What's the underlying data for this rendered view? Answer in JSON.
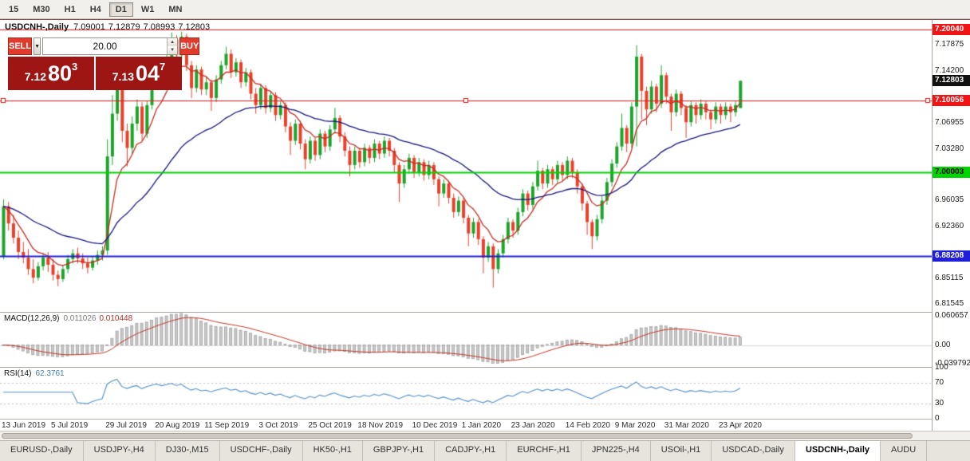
{
  "toolbar": {
    "timeframes": [
      {
        "label": "15",
        "active": false
      },
      {
        "label": "M30",
        "active": false
      },
      {
        "label": "H1",
        "active": false
      },
      {
        "label": "H4",
        "active": false
      },
      {
        "label": "D1",
        "active": true
      },
      {
        "label": "W1",
        "active": false
      },
      {
        "label": "MN",
        "active": false
      }
    ]
  },
  "info_line": {
    "symbol": "USDCNH-,Daily",
    "open": "7.09001",
    "high": "7.12879",
    "low": "7.08993",
    "close": "7.12803"
  },
  "trade_panel": {
    "sell_label": "SELL",
    "buy_label": "BUY",
    "volume": "20.00",
    "sell_price": {
      "base": "7.12",
      "pips": "80",
      "point": "3"
    },
    "buy_price": {
      "base": "7.13",
      "pips": "04",
      "point": "7"
    }
  },
  "indicators": {
    "macd": {
      "title": "MACD(12,26,9)",
      "value_main": "0.011026",
      "value_signal": "0.010448",
      "axis_labels": [
        "0.060657",
        "0.00",
        "-0.039792"
      ]
    },
    "rsi": {
      "title": "RSI(14)",
      "value": "62.3761",
      "axis_labels": [
        "100",
        "70",
        "30",
        "0"
      ],
      "levels": [
        70,
        30
      ]
    }
  },
  "price_axis": {
    "ticks": [
      "7.17875",
      "7.14200",
      "7.06955",
      "7.03280",
      "6.96035",
      "6.92360",
      "6.85115",
      "6.81545"
    ]
  },
  "tab_bar": {
    "tabs": [
      {
        "label": "EURUSD-,Daily",
        "active": false
      },
      {
        "label": "USDJPY-,H4",
        "active": false
      },
      {
        "label": "DJ30-,M15",
        "active": false
      },
      {
        "label": "USDCHF-,Daily",
        "active": false
      },
      {
        "label": "HK50-,H1",
        "active": false
      },
      {
        "label": "GBPJPY-,H1",
        "active": false
      },
      {
        "label": "CADJPY-,H1",
        "active": false
      },
      {
        "label": "EURCHF-,H1",
        "active": false
      },
      {
        "label": "JPN225-,H4",
        "active": false
      },
      {
        "label": "USOil-,H1",
        "active": false
      },
      {
        "label": "USDCAD-,Daily",
        "active": false
      },
      {
        "label": "USDCNH-,Daily",
        "active": true
      },
      {
        "label": "AUDU",
        "active": false
      }
    ]
  },
  "colors": {
    "up": "#1ca42c",
    "down": "#e9402b",
    "ma_fast": "#c92a21",
    "ma_slow": "#14147e",
    "line_red": "#f01414",
    "line_green": "#00d400",
    "line_blue": "#1f1fd9",
    "macd_hist": "#c9c9c9",
    "macd_hist_border": "#9a9a9a",
    "macd_signal": "#c03328",
    "rsi_line": "#4f8ec9",
    "tag_current_bg": "#111111",
    "button_red": "#e23a2b",
    "price_box_red": "#9e1613"
  },
  "chart_data": {
    "type": "candlestick",
    "symbol": "USDCNH-",
    "timeframe": "Daily",
    "current_bar": {
      "open": 7.09001,
      "high": 7.12879,
      "low": 7.08993,
      "close": 7.12803
    },
    "y_range": [
      6.804,
      7.2135
    ],
    "macd_range": [
      -0.046,
      0.068
    ],
    "x_labels": [
      {
        "t": "13 Jun 2019",
        "i": 0
      },
      {
        "t": "5 Jul 2019",
        "i": 10
      },
      {
        "t": "29 Jul 2019",
        "i": 21
      },
      {
        "t": "20 Aug 2019",
        "i": 31
      },
      {
        "t": "11 Sep 2019",
        "i": 41
      },
      {
        "t": "3 Oct 2019",
        "i": 52
      },
      {
        "t": "25 Oct 2019",
        "i": 62
      },
      {
        "t": "18 Nov 2019",
        "i": 72
      },
      {
        "t": "10 Dec 2019",
        "i": 83
      },
      {
        "t": "1 Jan 2020",
        "i": 93
      },
      {
        "t": "23 Jan 2020",
        "i": 103
      },
      {
        "t": "14 Feb 2020",
        "i": 114
      },
      {
        "t": "9 Mar 2020",
        "i": 124
      },
      {
        "t": "31 Mar 2020",
        "i": 134
      },
      {
        "t": "23 Apr 2020",
        "i": 145
      }
    ],
    "hlines": [
      {
        "price": 7.2004,
        "label": "7.20040",
        "color": "#f01414",
        "width": 1,
        "selected": false,
        "tag_text": "#ffffff"
      },
      {
        "price": 7.10056,
        "label": "7.10056",
        "color": "#f01414",
        "width": 1,
        "selected": true,
        "tag_text": "#ffffff"
      },
      {
        "price": 7.00003,
        "label": "7.00003",
        "color": "#00d400",
        "width": 2,
        "selected": false,
        "tag_text": "#000000"
      },
      {
        "price": 6.88208,
        "label": "6.88208",
        "color": "#1f1fd9",
        "width": 2,
        "selected": false,
        "tag_text": "#ffffff"
      }
    ],
    "price_tag": {
      "price": 7.12803,
      "label": "7.12803"
    },
    "candles": [
      [
        6.882,
        6.962,
        6.878,
        6.952
      ],
      [
        6.952,
        6.958,
        6.918,
        6.928
      ],
      [
        6.928,
        6.94,
        6.9,
        6.908
      ],
      [
        6.908,
        6.918,
        6.878,
        6.888
      ],
      [
        6.888,
        6.902,
        6.872,
        6.88
      ],
      [
        6.88,
        6.892,
        6.856,
        6.864
      ],
      [
        6.864,
        6.878,
        6.844,
        6.852
      ],
      [
        6.852,
        6.874,
        6.848,
        6.868
      ],
      [
        6.868,
        6.886,
        6.862,
        6.88
      ],
      [
        6.88,
        6.888,
        6.86,
        6.87
      ],
      [
        6.87,
        6.878,
        6.848,
        6.856
      ],
      [
        6.856,
        6.862,
        6.84,
        6.85
      ],
      [
        6.85,
        6.87,
        6.846,
        6.864
      ],
      [
        6.864,
        6.884,
        6.858,
        6.878
      ],
      [
        6.878,
        6.892,
        6.872,
        6.886
      ],
      [
        6.886,
        6.894,
        6.872,
        6.879
      ],
      [
        6.879,
        6.886,
        6.864,
        6.872
      ],
      [
        6.872,
        6.88,
        6.858,
        6.866
      ],
      [
        6.866,
        6.882,
        6.862,
        6.876
      ],
      [
        6.876,
        6.89,
        6.87,
        6.884
      ],
      [
        6.884,
        6.896,
        6.876,
        6.89
      ],
      [
        6.89,
        7.046,
        6.884,
        7.022
      ],
      [
        7.022,
        7.108,
        7.01,
        7.082
      ],
      [
        7.082,
        7.142,
        7.072,
        7.132
      ],
      [
        7.132,
        7.138,
        7.042,
        7.058
      ],
      [
        7.058,
        7.068,
        7.008,
        7.034
      ],
      [
        7.034,
        7.078,
        7.026,
        7.068
      ],
      [
        7.068,
        7.102,
        7.058,
        7.092
      ],
      [
        7.092,
        7.098,
        7.044,
        7.054
      ],
      [
        7.054,
        7.1,
        7.048,
        7.094
      ],
      [
        7.094,
        7.132,
        7.088,
        7.124
      ],
      [
        7.124,
        7.162,
        7.116,
        7.154
      ],
      [
        7.154,
        7.16,
        7.124,
        7.134
      ],
      [
        7.134,
        7.168,
        7.128,
        7.16
      ],
      [
        7.16,
        7.196,
        7.152,
        7.186
      ],
      [
        7.186,
        7.192,
        7.152,
        7.164
      ],
      [
        7.164,
        7.197,
        7.158,
        7.19
      ],
      [
        7.19,
        7.194,
        7.142,
        7.15
      ],
      [
        7.15,
        7.156,
        7.104,
        7.118
      ],
      [
        7.118,
        7.15,
        7.112,
        7.144
      ],
      [
        7.144,
        7.148,
        7.108,
        7.116
      ],
      [
        7.116,
        7.134,
        7.108,
        7.126
      ],
      [
        7.126,
        7.13,
        7.086,
        7.104
      ],
      [
        7.104,
        7.136,
        7.098,
        7.13
      ],
      [
        7.13,
        7.156,
        7.124,
        7.15
      ],
      [
        7.15,
        7.176,
        7.144,
        7.166
      ],
      [
        7.166,
        7.172,
        7.132,
        7.14
      ],
      [
        7.14,
        7.16,
        7.134,
        7.154
      ],
      [
        7.154,
        7.158,
        7.118,
        7.126
      ],
      [
        7.126,
        7.146,
        7.12,
        7.14
      ],
      [
        7.14,
        7.144,
        7.102,
        7.11
      ],
      [
        7.11,
        7.118,
        7.082,
        7.094
      ],
      [
        7.094,
        7.124,
        7.088,
        7.118
      ],
      [
        7.118,
        7.122,
        7.082,
        7.09
      ],
      [
        7.09,
        7.114,
        7.084,
        7.108
      ],
      [
        7.108,
        7.112,
        7.072,
        7.08
      ],
      [
        7.08,
        7.1,
        7.074,
        7.094
      ],
      [
        7.094,
        7.098,
        7.056,
        7.064
      ],
      [
        7.064,
        7.07,
        7.024,
        7.044
      ],
      [
        7.044,
        7.074,
        7.038,
        7.068
      ],
      [
        7.068,
        7.072,
        7.032,
        7.04
      ],
      [
        7.04,
        7.046,
        7.004,
        7.018
      ],
      [
        7.018,
        7.05,
        7.012,
        7.044
      ],
      [
        7.044,
        7.048,
        7.016,
        7.024
      ],
      [
        7.024,
        7.06,
        7.018,
        7.054
      ],
      [
        7.054,
        7.058,
        7.028,
        7.036
      ],
      [
        7.036,
        7.066,
        7.03,
        7.06
      ],
      [
        7.06,
        7.09,
        7.054,
        7.076
      ],
      [
        7.076,
        7.08,
        7.042,
        7.05
      ],
      [
        7.05,
        7.056,
        7.022,
        7.03
      ],
      [
        7.03,
        7.036,
        6.994,
        7.01
      ],
      [
        7.01,
        7.036,
        7.004,
        7.03
      ],
      [
        7.03,
        7.034,
        7.006,
        7.014
      ],
      [
        7.014,
        7.04,
        7.008,
        7.034
      ],
      [
        7.034,
        7.038,
        7.012,
        7.02
      ],
      [
        7.02,
        7.046,
        7.014,
        7.04
      ],
      [
        7.04,
        7.044,
        7.018,
        7.026
      ],
      [
        7.026,
        7.05,
        7.02,
        7.044
      ],
      [
        7.044,
        7.048,
        7.022,
        7.03
      ],
      [
        7.03,
        7.034,
        7.0,
        7.01
      ],
      [
        7.01,
        7.014,
        6.958,
        6.984
      ],
      [
        6.984,
        7.01,
        6.978,
        7.004
      ],
      [
        7.004,
        7.026,
        6.998,
        7.02
      ],
      [
        7.02,
        7.024,
        6.992,
        7.0
      ],
      [
        7.0,
        7.02,
        6.994,
        7.014
      ],
      [
        7.014,
        7.018,
        6.988,
        6.996
      ],
      [
        6.996,
        7.016,
        6.99,
        7.01
      ],
      [
        7.01,
        7.014,
        6.982,
        6.99
      ],
      [
        6.99,
        6.994,
        6.952,
        6.97
      ],
      [
        6.97,
        6.99,
        6.964,
        6.984
      ],
      [
        6.984,
        6.988,
        6.956,
        6.964
      ],
      [
        6.964,
        6.97,
        6.936,
        6.944
      ],
      [
        6.944,
        6.966,
        6.938,
        6.96
      ],
      [
        6.96,
        6.964,
        6.928,
        6.936
      ],
      [
        6.936,
        6.94,
        6.896,
        6.914
      ],
      [
        6.914,
        6.936,
        6.908,
        6.93
      ],
      [
        6.93,
        6.934,
        6.898,
        6.906
      ],
      [
        6.906,
        6.91,
        6.858,
        6.88
      ],
      [
        6.88,
        6.902,
        6.874,
        6.896
      ],
      [
        6.896,
        6.9,
        6.838,
        6.864
      ],
      [
        6.864,
        6.892,
        6.858,
        6.886
      ],
      [
        6.886,
        6.912,
        6.88,
        6.906
      ],
      [
        6.906,
        6.936,
        6.9,
        6.93
      ],
      [
        6.93,
        6.934,
        6.908,
        6.918
      ],
      [
        6.918,
        6.95,
        6.912,
        6.944
      ],
      [
        6.944,
        6.976,
        6.938,
        6.97
      ],
      [
        6.97,
        6.974,
        6.946,
        6.954
      ],
      [
        6.954,
        6.986,
        6.948,
        6.98
      ],
      [
        6.98,
        7.016,
        6.974,
        7.002
      ],
      [
        7.002,
        7.006,
        6.976,
        6.984
      ],
      [
        6.984,
        7.01,
        6.978,
        7.004
      ],
      [
        7.004,
        7.008,
        6.982,
        6.99
      ],
      [
        6.99,
        7.016,
        6.984,
        7.01
      ],
      [
        7.01,
        7.014,
        6.988,
        6.996
      ],
      [
        6.996,
        7.022,
        6.99,
        7.016
      ],
      [
        7.016,
        7.02,
        6.992,
        7.0
      ],
      [
        7.0,
        7.004,
        6.97,
        6.98
      ],
      [
        6.98,
        6.984,
        6.946,
        6.956
      ],
      [
        6.956,
        6.96,
        6.912,
        6.93
      ],
      [
        6.93,
        6.934,
        6.892,
        6.91
      ],
      [
        6.91,
        6.94,
        6.904,
        6.934
      ],
      [
        6.934,
        6.966,
        6.928,
        6.96
      ],
      [
        6.96,
        6.992,
        6.954,
        6.986
      ],
      [
        6.986,
        7.018,
        6.98,
        7.012
      ],
      [
        7.012,
        7.042,
        7.006,
        7.036
      ],
      [
        7.036,
        7.082,
        7.03,
        7.062
      ],
      [
        7.062,
        7.066,
        7.028,
        7.04
      ],
      [
        7.04,
        7.098,
        7.034,
        7.092
      ],
      [
        7.092,
        7.178,
        7.036,
        7.162
      ],
      [
        7.162,
        7.166,
        7.074,
        7.114
      ],
      [
        7.114,
        7.12,
        7.066,
        7.088
      ],
      [
        7.088,
        7.128,
        7.082,
        7.12
      ],
      [
        7.12,
        7.124,
        7.084,
        7.096
      ],
      [
        7.096,
        7.15,
        7.09,
        7.136
      ],
      [
        7.136,
        7.14,
        7.096,
        7.106
      ],
      [
        7.106,
        7.11,
        7.058,
        7.084
      ],
      [
        7.084,
        7.116,
        7.078,
        7.11
      ],
      [
        7.11,
        7.114,
        7.08,
        7.09
      ],
      [
        7.09,
        7.094,
        7.048,
        7.07
      ],
      [
        7.07,
        7.1,
        7.064,
        7.094
      ],
      [
        7.094,
        7.098,
        7.068,
        7.08
      ],
      [
        7.08,
        7.102,
        7.074,
        7.096
      ],
      [
        7.096,
        7.1,
        7.074,
        7.084
      ],
      [
        7.084,
        7.088,
        7.06,
        7.074
      ],
      [
        7.074,
        7.098,
        7.068,
        7.092
      ],
      [
        7.092,
        7.096,
        7.068,
        7.08
      ],
      [
        7.08,
        7.098,
        7.074,
        7.092
      ],
      [
        7.092,
        7.096,
        7.07,
        7.084
      ],
      [
        7.084,
        7.1,
        7.078,
        7.094
      ],
      [
        7.09,
        7.1288,
        7.0899,
        7.128
      ]
    ],
    "overlays": {
      "ma_fast_period": 8,
      "ma_slow_period": 34
    }
  },
  "scrollbar": {
    "visible": true
  }
}
